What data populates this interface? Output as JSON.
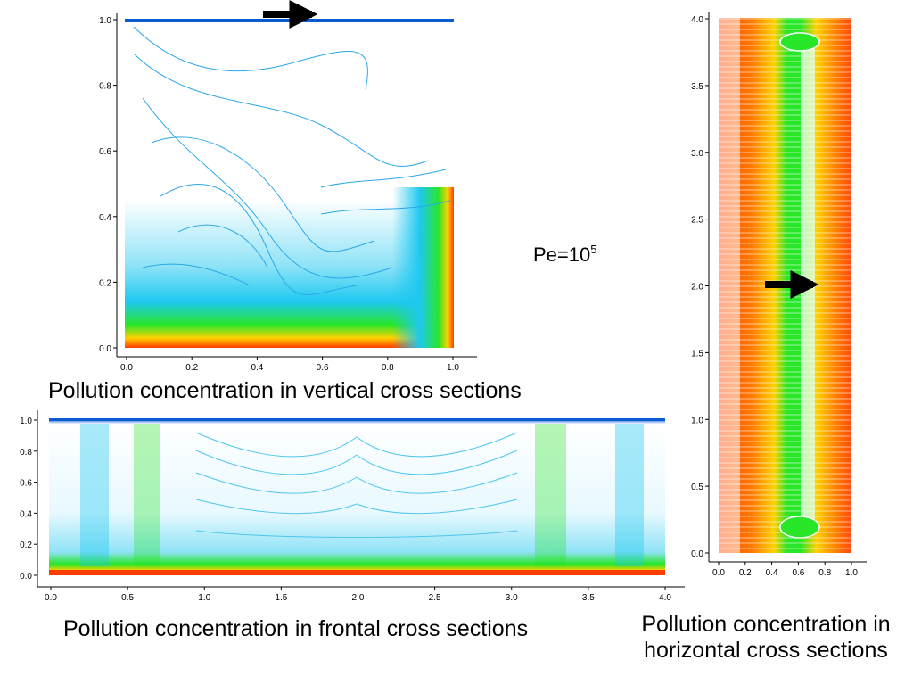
{
  "annotation": {
    "text": "Pe=10",
    "sup": "5"
  },
  "captions": {
    "vertical": "Pollution concentration in vertical cross sections",
    "frontal": "Pollution concentration in frontal cross sections",
    "horizontal_line1": "Pollution concentration in",
    "horizontal_line2": "horizontal cross sections"
  },
  "colors": {
    "low": "#0a5ad2",
    "mid_low": "#1ec8f0",
    "mid": "#28e628",
    "mid_high": "#ffd200",
    "high": "#ff3c00",
    "arrow": "#000000"
  },
  "chart_data": [
    {
      "type": "heatmap",
      "panel": "vertical",
      "x_ticks": [
        "0.0",
        "0.2",
        "0.4",
        "0.6",
        "0.8",
        "1.0"
      ],
      "y_ticks": [
        "0.0",
        "0.2",
        "0.4",
        "0.6",
        "0.8",
        "1.0"
      ],
      "xlim": [
        0,
        1
      ],
      "ylim": [
        0,
        1
      ],
      "flow_arrow": "top, pointing right",
      "grid": false
    },
    {
      "type": "heatmap",
      "panel": "horizontal",
      "x_ticks": [
        "0.0",
        "0.2",
        "0.4",
        "0.6",
        "0.8",
        "1.0"
      ],
      "y_ticks": [
        "0.0",
        "0.5",
        "1.0",
        "1.5",
        "2.0",
        "2.5",
        "3.0",
        "3.5",
        "4.0"
      ],
      "xlim": [
        0,
        1
      ],
      "ylim": [
        0,
        4
      ],
      "flow_arrow": "middle, pointing right",
      "grid": false
    },
    {
      "type": "heatmap",
      "panel": "frontal",
      "x_ticks": [
        "0.0",
        "0.5",
        "1.0",
        "1.5",
        "2.0",
        "2.5",
        "3.0",
        "3.5",
        "4.0"
      ],
      "y_ticks": [
        "0.0",
        "0.2",
        "0.4",
        "0.6",
        "0.8",
        "1.0"
      ],
      "xlim": [
        0,
        4
      ],
      "ylim": [
        0,
        1
      ],
      "grid": false
    }
  ]
}
